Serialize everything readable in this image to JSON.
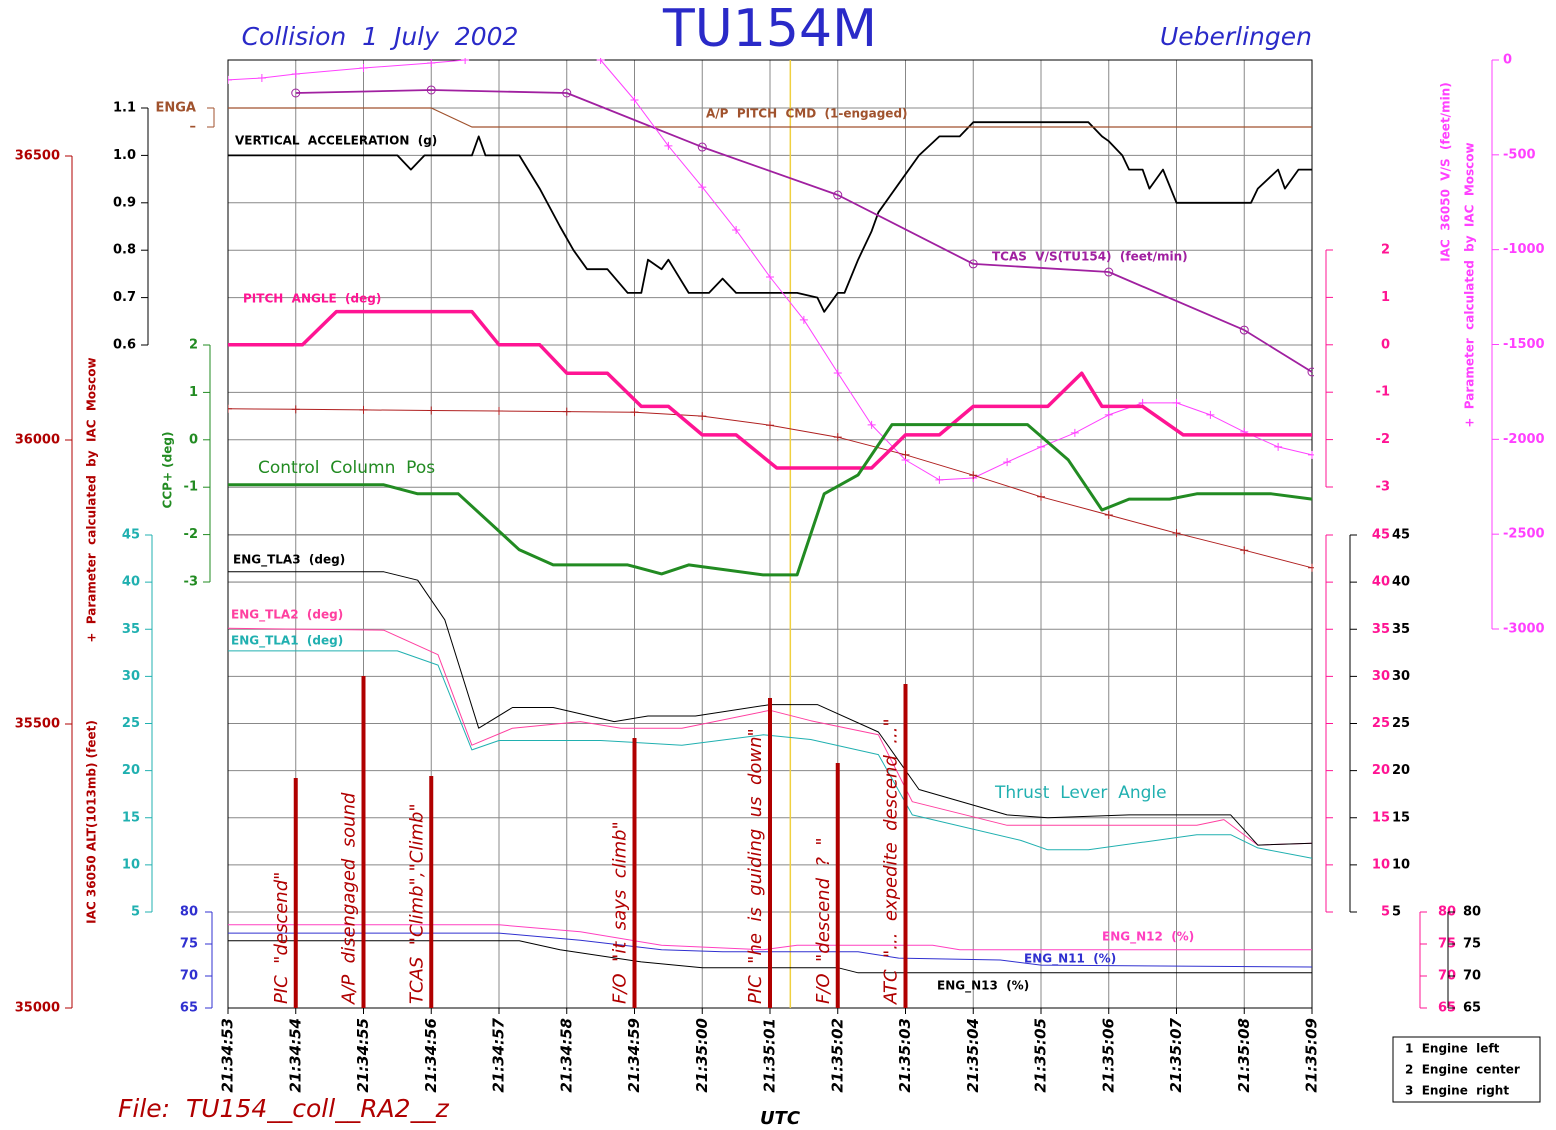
{
  "chart_data": {
    "type": "line",
    "title": "TU154M",
    "subtitle": "Collision  1  July  2002",
    "location": "Ueberlingen",
    "file": "File:  TU154__coll__RA2__z",
    "xlabel": "UTC",
    "xlim": [
      "21:34:53",
      "21:35:09"
    ],
    "xticks": [
      "21:34:53",
      "21:34:54",
      "21:34:55",
      "21:34:56",
      "21:34:57",
      "21:34:58",
      "21:34:59",
      "21:35:00",
      "21:35:01",
      "21:35:02",
      "21:35:03",
      "21:35:04",
      "21:35:05",
      "21:35:06",
      "21:35:07",
      "21:35:08",
      "21:35:09"
    ],
    "grid": true,
    "axes": [
      {
        "color": "#b00000",
        "ylim": [
          35000,
          36500
        ],
        "yticks": [
          35000,
          35500,
          36000,
          36500
        ],
        "labels": [
          "IAC 36050 ALT(1013mb) (feet)",
          "+  Parameter  calculated  by  IAC  Moscow"
        ]
      },
      {
        "color": "#000000",
        "ylim": [
          0.6,
          1.1
        ],
        "yticks": [
          0.6,
          0.7,
          0.8,
          0.9,
          {
            "value": 1,
            "label": "1.0"
          },
          1.1
        ],
        "grid": true
      },
      {
        "color": "#a0522d",
        "ylim": [
          0,
          1
        ],
        "yticks": [
          {
            "value": 0,
            "label": "–"
          },
          {
            "value": 1,
            "label": "ENGA"
          }
        ]
      },
      {
        "color": "#228b22",
        "ylim": [
          -3,
          2
        ],
        "yticks": [
          -3,
          -2,
          -1,
          0,
          1,
          2
        ],
        "grid": true,
        "labels": [
          "CCP+ (deg)"
        ]
      },
      {
        "color": "#20b0b0",
        "ylim": [
          5,
          45
        ],
        "yticks": [
          5,
          10,
          15,
          20,
          25,
          30,
          35,
          40,
          45
        ],
        "grid": true
      },
      {
        "color": "#3030d0",
        "ylim": [
          65,
          80
        ],
        "yticks": [
          65,
          70,
          75,
          80
        ]
      },
      {
        "color": "#ff1493",
        "ylim": [
          -3,
          2
        ],
        "yticks": [
          -3,
          -2,
          -1,
          0,
          1,
          2
        ]
      },
      {
        "color": "#ff1493",
        "ylim": [
          5,
          45
        ],
        "yticks": [
          5,
          10,
          15,
          20,
          25,
          30,
          35,
          40,
          45
        ]
      },
      {
        "color": "#000000",
        "ylim": [
          5,
          45
        ],
        "yticks": [
          5,
          10,
          15,
          20,
          25,
          30,
          35,
          40,
          45
        ]
      },
      {
        "color": "#ff1493",
        "ylim": [
          65,
          80
        ],
        "yticks": [
          65,
          70,
          75,
          80
        ]
      },
      {
        "color": "#000000",
        "ylim": [
          65,
          80
        ],
        "yticks": [
          65,
          70,
          75,
          80
        ]
      },
      {
        "color": "#ff40ff",
        "ylim": [
          -3000,
          0
        ],
        "yticks": [
          -3000,
          -2500,
          -2000,
          -1500,
          -1000,
          -500,
          0
        ],
        "labels": [
          "IAC  36050  V/S  (feet/min)",
          "+  Parameter  calculated  by  IAC  Moscow"
        ]
      }
    ],
    "series": [
      {
        "name": "VERTICAL  ACCELERATION  (g)",
        "color": "#000000",
        "axis": 1,
        "x": [
          "21:34:53",
          "21:34:55.5",
          "21:34:55.7",
          "21:34:55.9",
          "21:34:56.6",
          "21:34:56.7",
          "21:34:56.8",
          "21:34:57.3",
          "21:34:57.6",
          "21:34:57.9",
          "21:34:58.1",
          "21:34:58.3",
          "21:34:58.6",
          "21:34:58.9",
          "21:34:59.1",
          "21:34:59.2",
          "21:34:59.4",
          "21:34:59.5",
          "21:34:59.8",
          "21:35:00.1",
          "21:35:00.3",
          "21:35:00.5",
          "21:35:01.4",
          "21:35:01.7",
          "21:35:01.8",
          "21:35:02",
          "21:35:02.1",
          "21:35:02.3",
          "21:35:02.5",
          "21:35:02.6",
          "21:35:02.9",
          "21:35:03.2",
          "21:35:03.5",
          "21:35:03.8",
          "21:35:04",
          "21:35:05.7",
          "21:35:05.9",
          "21:35:06",
          "21:35:06.2",
          "21:35:06.3",
          "21:35:06.5",
          "21:35:06.6",
          "21:35:06.8",
          "21:35:07",
          "21:35:08.1",
          "21:35:08.2",
          "21:35:08.5",
          "21:35:08.6",
          "21:35:08.8",
          "21:35:09"
        ],
        "values": [
          1,
          1,
          0.97,
          1,
          1,
          1.04,
          1,
          1,
          0.93,
          0.85,
          0.8,
          0.76,
          0.76,
          0.71,
          0.71,
          0.78,
          0.76,
          0.78,
          0.71,
          0.71,
          0.74,
          0.71,
          0.71,
          0.7,
          0.67,
          0.71,
          0.71,
          0.78,
          0.84,
          0.88,
          0.94,
          1,
          1.04,
          1.04,
          1.07,
          1.07,
          1.04,
          1.03,
          1,
          0.97,
          0.97,
          0.93,
          0.97,
          0.9,
          0.9,
          0.93,
          0.97,
          0.93,
          0.97,
          0.97
        ]
      },
      {
        "name": "A/P  PITCH  CMD  (1-engaged)",
        "color": "#a0522d",
        "axis": 2,
        "x": [
          "21:34:53",
          "21:34:56",
          "21:34:56.6",
          "21:35:09"
        ],
        "values": [
          1,
          1,
          0,
          0
        ]
      },
      {
        "name": "TCAS  V/S(TU154)  (feet/min)",
        "color": "#a020a0",
        "axis": 11,
        "marker": "circle",
        "x": [
          "21:34:54",
          "21:34:56",
          "21:34:58",
          "21:35:00",
          "21:35:02",
          "21:35:04",
          "21:35:06",
          "21:35:08",
          "21:35:09"
        ],
        "values": [
          -174,
          -158,
          -174,
          -459,
          -712,
          -1075,
          -1118,
          -1424,
          -1645
        ]
      },
      {
        "color": "#ff40ff",
        "axis": 11,
        "marker": "cross",
        "x": [
          "21:34:53",
          "21:34:53.5",
          "21:34:54",
          "21:34:55",
          "21:34:56",
          "21:34:56.5",
          "21:34:57",
          "21:34:58.5",
          "21:34:59",
          "21:34:59.5",
          "21:35:00",
          "21:35:00.5",
          "21:35:01",
          "21:35:01.5",
          "21:35:02",
          "21:35:02.5",
          "21:35:03",
          "21:35:03.5",
          "21:35:04",
          "21:35:04.5",
          "21:35:05",
          "21:35:05.5",
          "21:35:06",
          "21:35:06.5",
          "21:35:07",
          "21:35:07.5",
          "21:35:08",
          "21:35:08.5",
          "21:35:09"
        ],
        "values": [
          -105,
          -95,
          -74,
          -42,
          -16,
          0,
          null,
          0,
          -211,
          -453,
          -670,
          -896,
          -1144,
          -1370,
          -1650,
          -1924,
          -2109,
          -2214,
          -2204,
          -2120,
          -2040,
          -1966,
          -1871,
          -1808,
          -1808,
          -1871,
          -1961,
          -2040,
          -2082
        ]
      },
      {
        "color": "#b02020",
        "axis": 0,
        "marker": "cross",
        "x": [
          "21:34:53",
          "21:34:54",
          "21:34:55",
          "21:34:56",
          "21:34:57",
          "21:34:58",
          "21:34:59",
          "21:35:00",
          "21:35:01",
          "21:35:02",
          "21:35:03",
          "21:35:04",
          "21:35:05",
          "21:35:06",
          "21:35:07",
          "21:35:08",
          "21:35:09"
        ],
        "values": [
          36055,
          36054,
          36053,
          36052,
          36051,
          36050,
          36049,
          36042,
          36026,
          36005,
          35974,
          35938,
          35900,
          35868,
          35836,
          35806,
          35775
        ]
      },
      {
        "name": "PITCH  ANGLE  (deg)",
        "color": "#ff1493",
        "axis": 6,
        "x": [
          "21:34:53",
          "21:34:54.1",
          "21:34:54.6",
          "21:34:56.6",
          "21:34:57",
          "21:34:57.6",
          "21:34:58",
          "21:34:58.6",
          "21:34:59.1",
          "21:34:59.5",
          "21:35:00",
          "21:35:00.5",
          "21:35:01.1",
          "21:35:02.5",
          "21:35:03",
          "21:35:03.5",
          "21:35:04",
          "21:35:05.1",
          "21:35:05.6",
          "21:35:05.9",
          "21:35:06.5",
          "21:35:07.1",
          "21:35:09"
        ],
        "values": [
          0,
          0,
          0.7,
          0.7,
          0,
          0,
          -0.6,
          -0.6,
          -1.3,
          -1.3,
          -1.9,
          -1.9,
          -2.6,
          -2.6,
          -1.9,
          -1.9,
          -1.3,
          -1.3,
          -0.6,
          -1.3,
          -1.3,
          -1.9,
          -1.9
        ]
      },
      {
        "name": "Control  Column  Pos",
        "color": "#228b22",
        "axis": 3,
        "x": [
          "21:34:53",
          "21:34:55.3",
          "21:34:55.8",
          "21:34:56.4",
          "21:34:57.3",
          "21:34:57.8",
          "21:34:58.9",
          "21:34:59.4",
          "21:34:59.8",
          "21:35:00.9",
          "21:35:01.4",
          "21:35:01.8",
          "21:35:02.3",
          "21:35:02.8",
          "21:35:04.8",
          "21:35:05.4",
          "21:35:05.9",
          "21:35:06.3",
          "21:35:06.9",
          "21:35:07.3",
          "21:35:08.4",
          "21:35:09"
        ],
        "values": [
          -0.95,
          -0.95,
          -1.14,
          -1.14,
          -2.32,
          -2.64,
          -2.64,
          -2.83,
          -2.64,
          -2.85,
          -2.85,
          -1.14,
          -0.74,
          0.32,
          0.32,
          -0.42,
          -1.48,
          -1.25,
          -1.25,
          -1.14,
          -1.14,
          -1.25
        ]
      },
      {
        "name": "ENG_TLA1  (deg)",
        "color": "#20b0b0",
        "axis": 4,
        "x": [
          "21:34:53",
          "21:34:55.5",
          "21:34:56.1",
          "21:34:56.6",
          "21:34:57",
          "21:34:58.5",
          "21:34:59.7",
          "21:35:00.9",
          "21:35:01.6",
          "21:35:02.6",
          "21:35:03.1",
          "21:35:04.7",
          "21:35:05.1",
          "21:35:05.7",
          "21:35:07.3",
          "21:35:07.8",
          "21:35:08.2",
          "21:35:09"
        ],
        "values": [
          32.7,
          32.7,
          31.2,
          22.2,
          23.2,
          23.2,
          22.7,
          23.8,
          23.3,
          21.7,
          15.3,
          12.6,
          11.6,
          11.6,
          13.2,
          13.2,
          11.8,
          10.7
        ]
      },
      {
        "name": "ENG_TLA2  (deg)",
        "color": "#ff40a0",
        "axis": 7,
        "x": [
          "21:34:53",
          "21:34:55.3",
          "21:34:56.1",
          "21:34:56.6",
          "21:34:57.2",
          "21:34:58.2",
          "21:34:58.8",
          "21:34:59.7",
          "21:35:01",
          "21:35:01.6",
          "21:35:02.6",
          "21:35:03.1",
          "21:35:04.5",
          "21:35:07.3",
          "21:35:07.7",
          "21:35:08.2",
          "21:35:09"
        ],
        "values": [
          35.1,
          34.9,
          32.3,
          22.7,
          24.5,
          25.2,
          24.5,
          24.5,
          26.4,
          25.3,
          23.8,
          16.7,
          14.2,
          14.2,
          14.8,
          12.1,
          12.3
        ]
      },
      {
        "name": "ENG_TLA3  (deg)",
        "color": "#000000",
        "axis": 8,
        "x": [
          "21:34:53",
          "21:34:55.3",
          "21:34:55.8",
          "21:34:56.2",
          "21:34:56.7",
          "21:34:57.2",
          "21:34:57.8",
          "21:34:58.7",
          "21:34:59.2",
          "21:34:59.9",
          "21:35:01",
          "21:35:01.7",
          "21:35:02.6",
          "21:35:03.2",
          "21:35:04.5",
          "21:35:05.1",
          "21:35:06.3",
          "21:35:07.8",
          "21:35:08.2",
          "21:35:09"
        ],
        "values": [
          41.1,
          41.1,
          40.2,
          36,
          24.5,
          26.7,
          26.7,
          25.2,
          25.8,
          25.8,
          27,
          27,
          24.1,
          18,
          15.3,
          15,
          15.3,
          15.3,
          12.1,
          12.3
        ]
      },
      {
        "name": "ENG_N11  (%)",
        "color": "#3030d0",
        "axis": 5,
        "x": [
          "21:34:53",
          "21:34:57",
          "21:34:58.2",
          "21:34:59.4",
          "21:35:00.3",
          "21:35:02.3",
          "21:35:02.9",
          "21:35:04.4",
          "21:35:05",
          "21:35:09"
        ],
        "values": [
          76.7,
          76.7,
          75.6,
          74.1,
          73.8,
          73.8,
          72.8,
          72.5,
          71.7,
          71.4
        ]
      },
      {
        "name": "ENG_N12  (%)",
        "color": "#ff40c0",
        "axis": 9,
        "x": [
          "21:34:53",
          "21:34:57",
          "21:34:58.2",
          "21:34:59.4",
          "21:35:00.9",
          "21:35:01.4",
          "21:35:03.4",
          "21:35:03.8",
          "21:35:09"
        ],
        "values": [
          78,
          78,
          76.9,
          74.8,
          74.1,
          74.8,
          74.8,
          74.1,
          74.1
        ]
      },
      {
        "name": "ENG_N13  (%)",
        "color": "#000000",
        "axis": 10,
        "x": [
          "21:34:53",
          "21:34:57.3",
          "21:34:57.9",
          "21:34:59.1",
          "21:35:00",
          "21:35:02",
          "21:35:02.3",
          "21:35:09"
        ],
        "values": [
          75.5,
          75.5,
          74.1,
          72.2,
          71.3,
          71.3,
          70.5,
          70.5
        ]
      }
    ],
    "tla_label": "Thrust  Lever  Angle",
    "markers": [
      {
        "x": "21:35:01.3",
        "color": "#f0d040"
      }
    ],
    "annotations": [
      {
        "x": "21:34:54",
        "text": "PIC  \"descend\""
      },
      {
        "x": "21:34:55",
        "text": "A/P  disengaged  sound"
      },
      {
        "x": "21:34:56",
        "text": "TCAS  \"Climb\",\"Climb\""
      },
      {
        "x": "21:34:59",
        "text": "F/O  \"it  says  climb\""
      },
      {
        "x": "21:35:01",
        "text": "PIC  \"he  is  guiding  us  down\""
      },
      {
        "x": "21:35:02",
        "text": "F/O  \"descend  ?  \""
      },
      {
        "x": "21:35:03",
        "text": "ATC  \"...  expedite  descend  ...\""
      }
    ],
    "annotation_color": "#b00000",
    "notes": [
      "1  Engine  left",
      "2  Engine  center",
      "3  Engine  right"
    ]
  }
}
